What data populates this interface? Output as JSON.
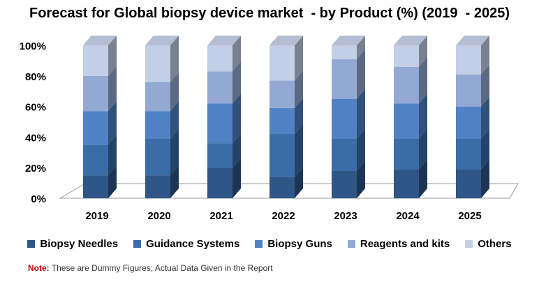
{
  "chart_data": {
    "type": "bar",
    "stacked": true,
    "title": "Forecast for Global biopsy device market  - by Product (%) (2019  - 2025)",
    "categories": [
      "2019",
      "2020",
      "2021",
      "2022",
      "2023",
      "2024",
      "2025"
    ],
    "yticks": [
      "0%",
      "20%",
      "40%",
      "60%",
      "80%",
      "100%"
    ],
    "ylim": [
      0,
      100
    ],
    "grid": false,
    "legend_position": "bottom",
    "series": [
      {
        "name": "Biopsy Needles",
        "color": "#2e5687",
        "values": [
          15,
          15,
          20,
          14,
          18,
          19,
          19
        ]
      },
      {
        "name": "Guidance Systems",
        "color": "#3a6ca8",
        "values": [
          20,
          24,
          16,
          28,
          21,
          20,
          20
        ]
      },
      {
        "name": "Biopsy Guns",
        "color": "#4f81c4",
        "values": [
          22,
          18,
          26,
          17,
          26,
          23,
          21
        ]
      },
      {
        "name": "Reagents and kits",
        "color": "#93a9d4",
        "values": [
          23,
          19,
          21,
          18,
          26,
          24,
          21
        ]
      },
      {
        "name": "Others",
        "color": "#c3cfe6",
        "values": [
          20,
          24,
          17,
          23,
          9,
          14,
          19
        ]
      }
    ]
  },
  "note": {
    "label": "Note:",
    "text": " These are Dummy Figures; Actual Data Given in the Report"
  }
}
